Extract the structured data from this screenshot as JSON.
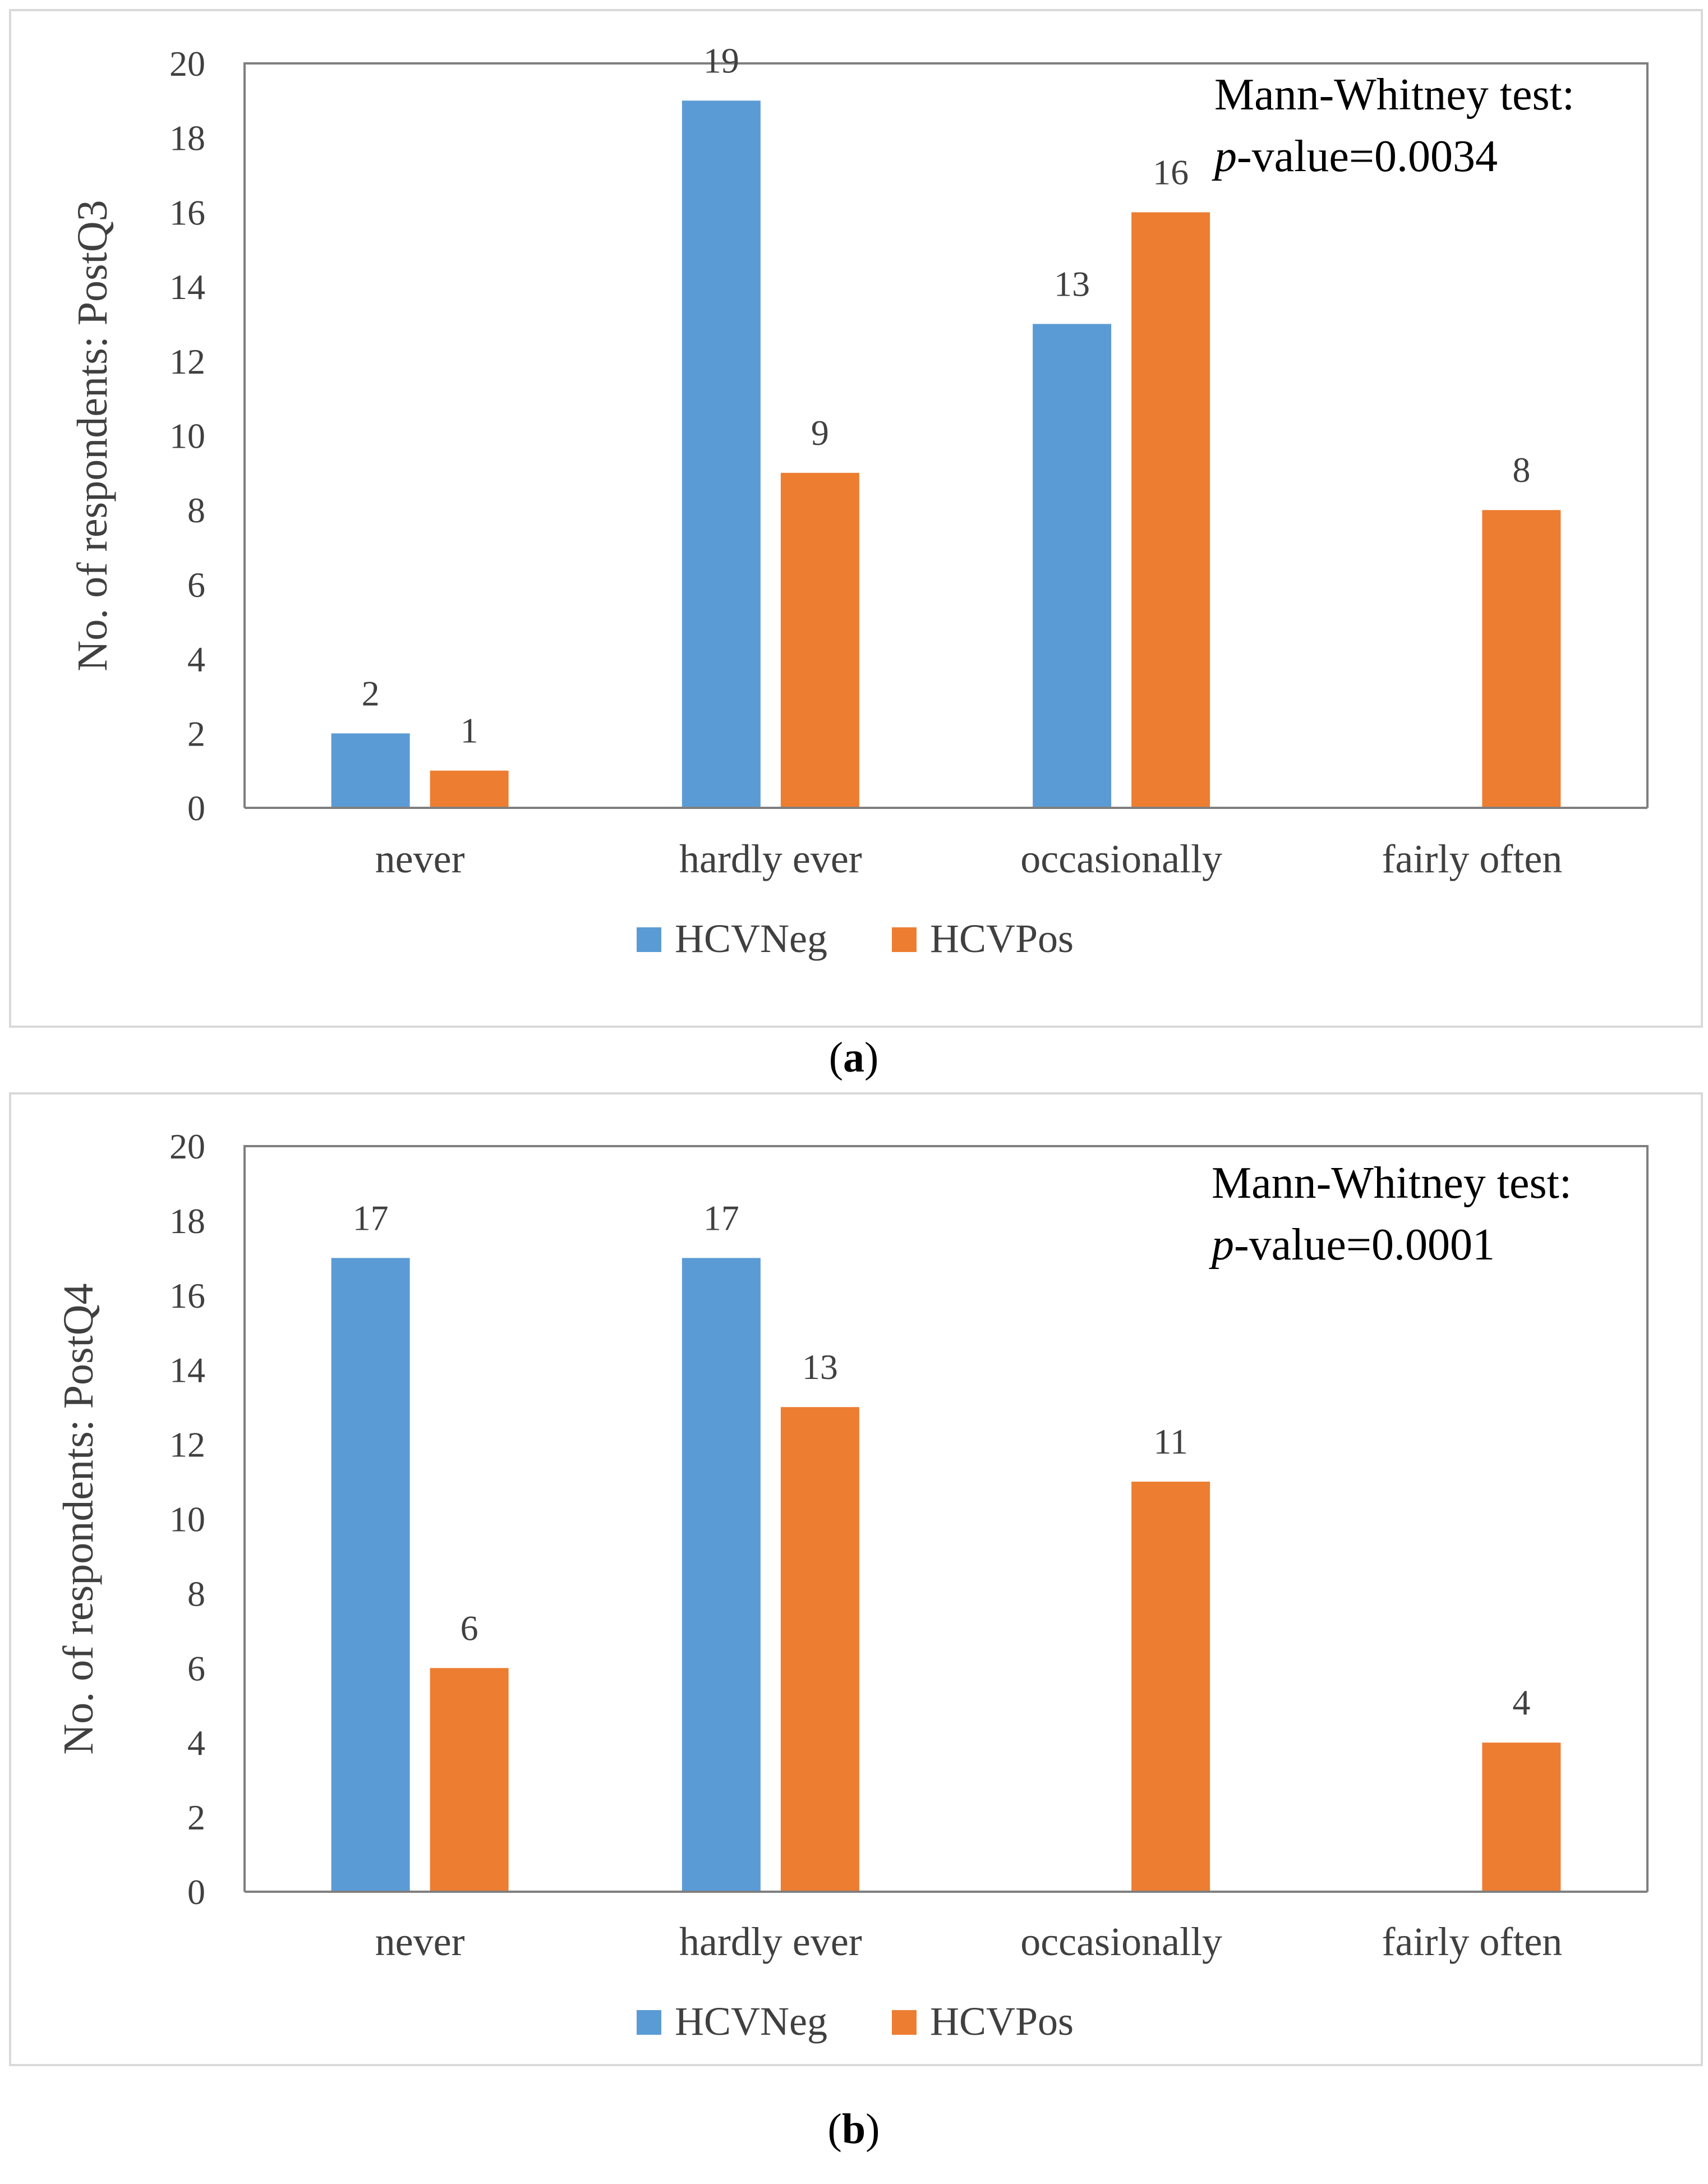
{
  "colors": {
    "HCVNeg": "#5b9bd5",
    "HCVPos": "#ed7d31",
    "axis": "#7f7f7f",
    "text": "#404040",
    "frame": "#d9d9d9"
  },
  "panels": [
    {
      "caption_letter": "a",
      "note_line1": "Mann-Whitney test:",
      "note_p": "p",
      "note_rest": "-value=0.0034"
    },
    {
      "caption_letter": "b",
      "note_line1": "Mann-Whitney test:",
      "note_p": "p",
      "note_rest": "-value=0.0001"
    }
  ],
  "chart_data": [
    {
      "type": "bar",
      "ylabel": "No. of respondents: PostQ3",
      "ylim": [
        0,
        20
      ],
      "yticks": [
        0,
        2,
        4,
        6,
        8,
        10,
        12,
        14,
        16,
        18,
        20
      ],
      "categories": [
        "never",
        "hardly ever",
        "occasionally",
        "fairly often"
      ],
      "series": [
        {
          "name": "HCVNeg",
          "values": [
            2,
            19,
            13,
            null
          ]
        },
        {
          "name": "HCVPos",
          "values": [
            1,
            9,
            16,
            8
          ]
        }
      ],
      "legend": "bottom"
    },
    {
      "type": "bar",
      "ylabel": "No. of respondents: PostQ4",
      "ylim": [
        0,
        20
      ],
      "yticks": [
        0,
        2,
        4,
        6,
        8,
        10,
        12,
        14,
        16,
        18,
        20
      ],
      "categories": [
        "never",
        "hardly ever",
        "occasionally",
        "fairly often"
      ],
      "series": [
        {
          "name": "HCVNeg",
          "values": [
            17,
            17,
            null,
            null
          ]
        },
        {
          "name": "HCVPos",
          "values": [
            6,
            13,
            11,
            4
          ]
        }
      ],
      "legend": "bottom"
    }
  ]
}
